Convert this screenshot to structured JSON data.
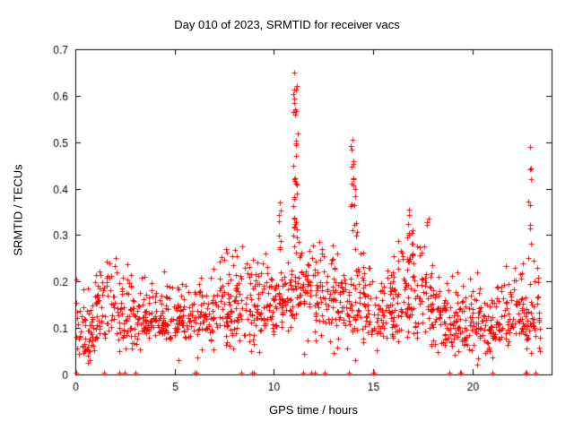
{
  "figure": {
    "title": "Day 010 of 2023, SRMTID for receiver vacs",
    "xlabel": "GPS time / hours",
    "ylabel": "SRMTID / TECUs"
  },
  "chart_data": {
    "type": "scatter",
    "title": "Day 010 of 2023, SRMTID for receiver vacs",
    "xlabel": "GPS time / hours",
    "ylabel": "SRMTID / TECUs",
    "xlim": [
      0,
      24
    ],
    "ylim": [
      0,
      0.7
    ],
    "xticks": [
      0,
      5,
      10,
      15,
      20
    ],
    "xtick_labels": [
      "0",
      "5",
      "10",
      "15",
      "20"
    ],
    "yticks": [
      0,
      0.1,
      0.2,
      0.3,
      0.4,
      0.5,
      0.6,
      0.7
    ],
    "ytick_labels": [
      "0",
      "0.1",
      "0.2",
      "0.3",
      "0.4",
      "0.5",
      "0.6",
      "0.7"
    ],
    "grid": false,
    "legend": "none",
    "marker": {
      "symbol": "plus",
      "color": "#ff0000",
      "size": 7
    },
    "x_data_range": [
      0,
      23.45
    ],
    "points_per_hour": 60,
    "hourly_envelope": {
      "hours": [
        0,
        1,
        2,
        3,
        4,
        5,
        6,
        7,
        8,
        9,
        10,
        11,
        12,
        13,
        14,
        15,
        16,
        17,
        18,
        19,
        20,
        21,
        22,
        23
      ],
      "mean": [
        0.085,
        0.13,
        0.125,
        0.12,
        0.12,
        0.125,
        0.13,
        0.135,
        0.14,
        0.15,
        0.165,
        0.19,
        0.155,
        0.145,
        0.155,
        0.13,
        0.155,
        0.165,
        0.115,
        0.1,
        0.1,
        0.115,
        0.12,
        0.12
      ],
      "spread": [
        0.035,
        0.045,
        0.04,
        0.03,
        0.035,
        0.03,
        0.035,
        0.04,
        0.05,
        0.045,
        0.05,
        0.055,
        0.05,
        0.04,
        0.05,
        0.045,
        0.05,
        0.055,
        0.04,
        0.035,
        0.035,
        0.035,
        0.035,
        0.045
      ]
    },
    "spikes": [
      {
        "x": 10.3,
        "y_base": 0.27,
        "y_peak": 0.37,
        "count": 7
      },
      {
        "x": 11.05,
        "y_base": 0.28,
        "y_peak": 0.65,
        "count": 22
      },
      {
        "x": 11.15,
        "y_base": 0.3,
        "y_peak": 0.62,
        "count": 10
      },
      {
        "x": 13.95,
        "y_base": 0.28,
        "y_peak": 0.505,
        "count": 12
      },
      {
        "x": 14.1,
        "y_base": 0.25,
        "y_peak": 0.4,
        "count": 6
      },
      {
        "x": 16.8,
        "y_base": 0.24,
        "y_peak": 0.355,
        "count": 10
      },
      {
        "x": 17.0,
        "y_base": 0.22,
        "y_peak": 0.31,
        "count": 8
      },
      {
        "x": 22.9,
        "y_base": 0.18,
        "y_peak": 0.49,
        "count": 10
      }
    ],
    "zero_value_times": [
      0.05,
      1.45,
      2.2,
      2.5,
      3.05,
      6.0,
      6.1,
      8.35,
      8.9,
      9.0,
      11.5,
      11.9,
      12.05,
      12.55,
      13.8,
      15.0,
      15.05,
      18.85,
      19.4,
      19.45,
      21.0,
      22.7,
      22.75,
      23.2
    ],
    "observations": {
      "baseline_range": [
        0.05,
        0.25
      ],
      "max_value": 0.65,
      "max_time": 11.1
    }
  }
}
